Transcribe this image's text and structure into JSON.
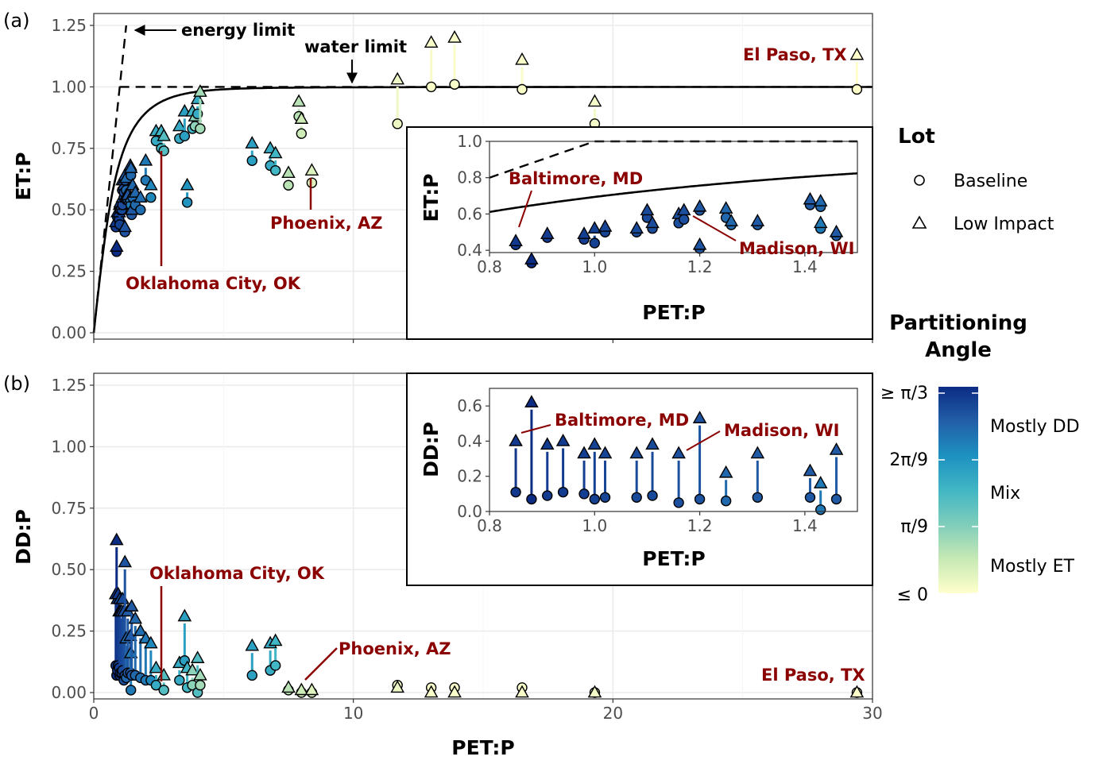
{
  "panels": {
    "a_tag": "(a)",
    "b_tag": "(b)"
  },
  "axes": {
    "xlabel": "PET:P",
    "ylabel_a": "ET:P",
    "ylabel_b": "DD:P",
    "xticks": [
      "0",
      "10",
      "20",
      "30"
    ],
    "yticks": [
      "0.00",
      "0.25",
      "0.50",
      "0.75",
      "1.00",
      "1.25"
    ],
    "inset_xticks": [
      "0.8",
      "1.0",
      "1.2",
      "1.4"
    ],
    "inset_a_yticks": [
      "0.4",
      "0.6",
      "0.8",
      "1.0"
    ],
    "inset_b_yticks": [
      "0.0",
      "0.2",
      "0.4",
      "0.6"
    ]
  },
  "annotations": {
    "energy_limit": "energy limit",
    "water_limit": "water limit",
    "el_paso": "El Paso, TX",
    "phoenix": "Phoenix, AZ",
    "okc": "Oklahoma City, OK",
    "baltimore": "Baltimore, MD",
    "madison": "Madison, WI"
  },
  "legend": {
    "lot_title": "Lot",
    "lot_items": [
      "Baseline",
      "Low Impact"
    ],
    "angle_title_1": "Partitioning",
    "angle_title_2": "Angle",
    "angle_ticks": [
      "≥ π/3",
      "2π/9",
      "π/9",
      "≤ 0"
    ],
    "angle_labels": [
      "Mostly DD",
      "Mix",
      "Mostly ET"
    ],
    "colors": [
      "#ffffcc",
      "#c7e9b4",
      "#7fcdbb",
      "#41b6c4",
      "#1d91c0",
      "#225ea8",
      "#0c2c84"
    ]
  },
  "chart_data": [
    {
      "type": "scatter",
      "panel": "a",
      "xlabel": "PET:P",
      "ylabel": "ET:P",
      "xlim": [
        0,
        30
      ],
      "ylim": [
        0,
        1.25
      ],
      "reference_lines": [
        "energy limit",
        "water limit",
        "Budyko curve"
      ],
      "series": [
        {
          "name": "Baseline",
          "marker": "circle"
        },
        {
          "name": "Low Impact",
          "marker": "triangle"
        }
      ],
      "points": [
        {
          "x": 0.85,
          "base": 0.43,
          "low": 0.45,
          "angle": 0.96
        },
        {
          "x": 0.88,
          "base": 0.33,
          "low": 0.35,
          "angle": 1.0
        },
        {
          "x": 0.91,
          "base": 0.47,
          "low": 0.49,
          "angle": 0.95
        },
        {
          "x": 0.98,
          "base": 0.46,
          "low": 0.49,
          "angle": 0.94
        },
        {
          "x": 1.0,
          "base": 0.44,
          "low": 0.52,
          "angle": 0.93
        },
        {
          "x": 1.02,
          "base": 0.5,
          "low": 0.53,
          "angle": 0.92
        },
        {
          "x": 1.08,
          "base": 0.5,
          "low": 0.52,
          "angle": 0.9
        },
        {
          "x": 1.1,
          "base": 0.58,
          "low": 0.62,
          "angle": 0.9
        },
        {
          "x": 1.11,
          "base": 0.52,
          "low": 0.55,
          "angle": 0.89
        },
        {
          "x": 1.16,
          "base": 0.55,
          "low": 0.6,
          "angle": 0.88
        },
        {
          "x": 1.17,
          "base": 0.57,
          "low": 0.62,
          "angle": 0.88
        },
        {
          "x": 1.2,
          "base": 0.41,
          "low": 0.43,
          "angle": 0.87
        },
        {
          "x": 1.2,
          "base": 0.62,
          "low": 0.64,
          "angle": 0.86
        },
        {
          "x": 1.25,
          "base": 0.58,
          "low": 0.63,
          "angle": 0.8
        },
        {
          "x": 1.26,
          "base": 0.54,
          "low": 0.56,
          "angle": 0.8
        },
        {
          "x": 1.31,
          "base": 0.54,
          "low": 0.56,
          "angle": 0.85
        },
        {
          "x": 1.41,
          "base": 0.65,
          "low": 0.68,
          "angle": 0.85
        },
        {
          "x": 1.43,
          "base": 0.64,
          "low": 0.67,
          "angle": 0.8
        },
        {
          "x": 1.43,
          "base": 0.52,
          "low": 0.55,
          "angle": 0.75
        },
        {
          "x": 1.46,
          "base": 0.48,
          "low": 0.5,
          "angle": 0.85
        },
        {
          "x": 1.5,
          "base": 0.55,
          "low": 0.6,
          "angle": 0.8
        },
        {
          "x": 1.6,
          "base": 0.52,
          "low": 0.57,
          "angle": 0.8
        },
        {
          "x": 1.8,
          "base": 0.5,
          "low": 0.55,
          "angle": 0.78
        },
        {
          "x": 2.0,
          "base": 0.62,
          "low": 0.7,
          "angle": 0.75
        },
        {
          "x": 2.2,
          "base": 0.55,
          "low": 0.6,
          "angle": 0.7
        },
        {
          "x": 2.4,
          "base": 0.78,
          "low": 0.82,
          "angle": 0.55
        },
        {
          "x": 2.6,
          "base": 0.75,
          "low": 0.82,
          "angle": 0.5
        },
        {
          "x": 2.7,
          "base": 0.74,
          "low": 0.8,
          "angle": 0.45
        },
        {
          "x": 3.3,
          "base": 0.79,
          "low": 0.84,
          "angle": 0.55
        },
        {
          "x": 3.5,
          "base": 0.8,
          "low": 0.9,
          "angle": 0.6
        },
        {
          "x": 3.6,
          "base": 0.53,
          "low": 0.6,
          "angle": 0.65
        },
        {
          "x": 3.8,
          "base": 0.83,
          "low": 0.9,
          "angle": 0.5
        },
        {
          "x": 3.9,
          "base": 0.84,
          "low": 0.88,
          "angle": 0.3
        },
        {
          "x": 4.0,
          "base": 0.89,
          "low": 0.95,
          "angle": 0.55
        },
        {
          "x": 4.1,
          "base": 0.83,
          "low": 0.98,
          "angle": 0.25
        },
        {
          "x": 6.1,
          "base": 0.7,
          "low": 0.77,
          "angle": 0.6
        },
        {
          "x": 6.8,
          "base": 0.68,
          "low": 0.75,
          "angle": 0.55
        },
        {
          "x": 7.0,
          "base": 0.66,
          "low": 0.73,
          "angle": 0.5
        },
        {
          "x": 7.5,
          "base": 0.6,
          "low": 0.65,
          "angle": 0.2
        },
        {
          "x": 7.9,
          "base": 0.88,
          "low": 0.94,
          "angle": 0.2
        },
        {
          "x": 8.0,
          "base": 0.81,
          "low": 0.87,
          "angle": 0.15
        },
        {
          "x": 8.4,
          "base": 0.61,
          "low": 0.66,
          "angle": 0.1
        },
        {
          "x": 11.7,
          "base": 0.85,
          "low": 1.03,
          "angle": 0.05
        },
        {
          "x": 13.0,
          "base": 1.0,
          "low": 1.18,
          "angle": 0.02
        },
        {
          "x": 13.9,
          "base": 1.01,
          "low": 1.2,
          "angle": 0.02
        },
        {
          "x": 16.5,
          "base": 0.99,
          "low": 1.11,
          "angle": 0.02
        },
        {
          "x": 19.3,
          "base": 0.85,
          "low": 0.94,
          "angle": 0.03
        },
        {
          "x": 29.4,
          "base": 0.99,
          "low": 1.13,
          "angle": 0.0
        }
      ]
    },
    {
      "type": "scatter",
      "panel": "b",
      "xlabel": "PET:P",
      "ylabel": "DD:P",
      "xlim": [
        0,
        30
      ],
      "ylim": [
        0,
        1.25
      ],
      "series": [
        {
          "name": "Baseline",
          "marker": "circle"
        },
        {
          "name": "Low Impact",
          "marker": "triangle"
        }
      ],
      "points": [
        {
          "x": 0.85,
          "base": 0.11,
          "low": 0.4,
          "angle": 0.96
        },
        {
          "x": 0.88,
          "base": 0.07,
          "low": 0.62,
          "angle": 1.0
        },
        {
          "x": 0.91,
          "base": 0.09,
          "low": 0.38,
          "angle": 0.95
        },
        {
          "x": 0.94,
          "base": 0.11,
          "low": 0.4,
          "angle": 0.95
        },
        {
          "x": 0.98,
          "base": 0.1,
          "low": 0.33,
          "angle": 0.94
        },
        {
          "x": 1.0,
          "base": 0.07,
          "low": 0.38,
          "angle": 0.93
        },
        {
          "x": 1.02,
          "base": 0.08,
          "low": 0.33,
          "angle": 0.92
        },
        {
          "x": 1.08,
          "base": 0.08,
          "low": 0.33,
          "angle": 0.9
        },
        {
          "x": 1.11,
          "base": 0.09,
          "low": 0.38,
          "angle": 0.9
        },
        {
          "x": 1.16,
          "base": 0.05,
          "low": 0.33,
          "angle": 0.88
        },
        {
          "x": 1.2,
          "base": 0.07,
          "low": 0.53,
          "angle": 0.87
        },
        {
          "x": 1.25,
          "base": 0.06,
          "low": 0.22,
          "angle": 0.8
        },
        {
          "x": 1.31,
          "base": 0.08,
          "low": 0.33,
          "angle": 0.85
        },
        {
          "x": 1.41,
          "base": 0.08,
          "low": 0.23,
          "angle": 0.85
        },
        {
          "x": 1.43,
          "base": 0.01,
          "low": 0.16,
          "angle": 0.75
        },
        {
          "x": 1.46,
          "base": 0.07,
          "low": 0.35,
          "angle": 0.85
        },
        {
          "x": 1.6,
          "base": 0.07,
          "low": 0.3,
          "angle": 0.8
        },
        {
          "x": 1.8,
          "base": 0.06,
          "low": 0.25,
          "angle": 0.78
        },
        {
          "x": 2.0,
          "base": 0.05,
          "low": 0.22,
          "angle": 0.75
        },
        {
          "x": 2.2,
          "base": 0.05,
          "low": 0.2,
          "angle": 0.7
        },
        {
          "x": 2.4,
          "base": 0.03,
          "low": 0.1,
          "angle": 0.55
        },
        {
          "x": 2.7,
          "base": 0.01,
          "low": 0.07,
          "angle": 0.45
        },
        {
          "x": 3.3,
          "base": 0.05,
          "low": 0.12,
          "angle": 0.55
        },
        {
          "x": 3.5,
          "base": 0.13,
          "low": 0.31,
          "angle": 0.6
        },
        {
          "x": 3.6,
          "base": 0.02,
          "low": 0.1,
          "angle": 0.5
        },
        {
          "x": 3.8,
          "base": 0.03,
          "low": 0.09,
          "angle": 0.3
        },
        {
          "x": 4.0,
          "base": 0.0,
          "low": 0.14,
          "angle": 0.45
        },
        {
          "x": 4.1,
          "base": 0.03,
          "low": 0.07,
          "angle": 0.25
        },
        {
          "x": 6.1,
          "base": 0.07,
          "low": 0.19,
          "angle": 0.6
        },
        {
          "x": 6.8,
          "base": 0.09,
          "low": 0.2,
          "angle": 0.55
        },
        {
          "x": 7.0,
          "base": 0.11,
          "low": 0.21,
          "angle": 0.5
        },
        {
          "x": 7.5,
          "base": 0.01,
          "low": 0.02,
          "angle": 0.2
        },
        {
          "x": 8.0,
          "base": 0.0,
          "low": 0.01,
          "angle": 0.15
        },
        {
          "x": 8.4,
          "base": 0.0,
          "low": 0.01,
          "angle": 0.1
        },
        {
          "x": 11.7,
          "base": 0.03,
          "low": 0.02,
          "angle": 0.05
        },
        {
          "x": 13.0,
          "base": 0.02,
          "low": 0.0,
          "angle": 0.02
        },
        {
          "x": 13.9,
          "base": 0.02,
          "low": 0.0,
          "angle": 0.02
        },
        {
          "x": 16.5,
          "base": 0.02,
          "low": 0.0,
          "angle": 0.02
        },
        {
          "x": 19.3,
          "base": 0.0,
          "low": 0.0,
          "angle": 0.03
        },
        {
          "x": 29.4,
          "base": 0.0,
          "low": 0.0,
          "angle": 0.0
        }
      ]
    }
  ]
}
